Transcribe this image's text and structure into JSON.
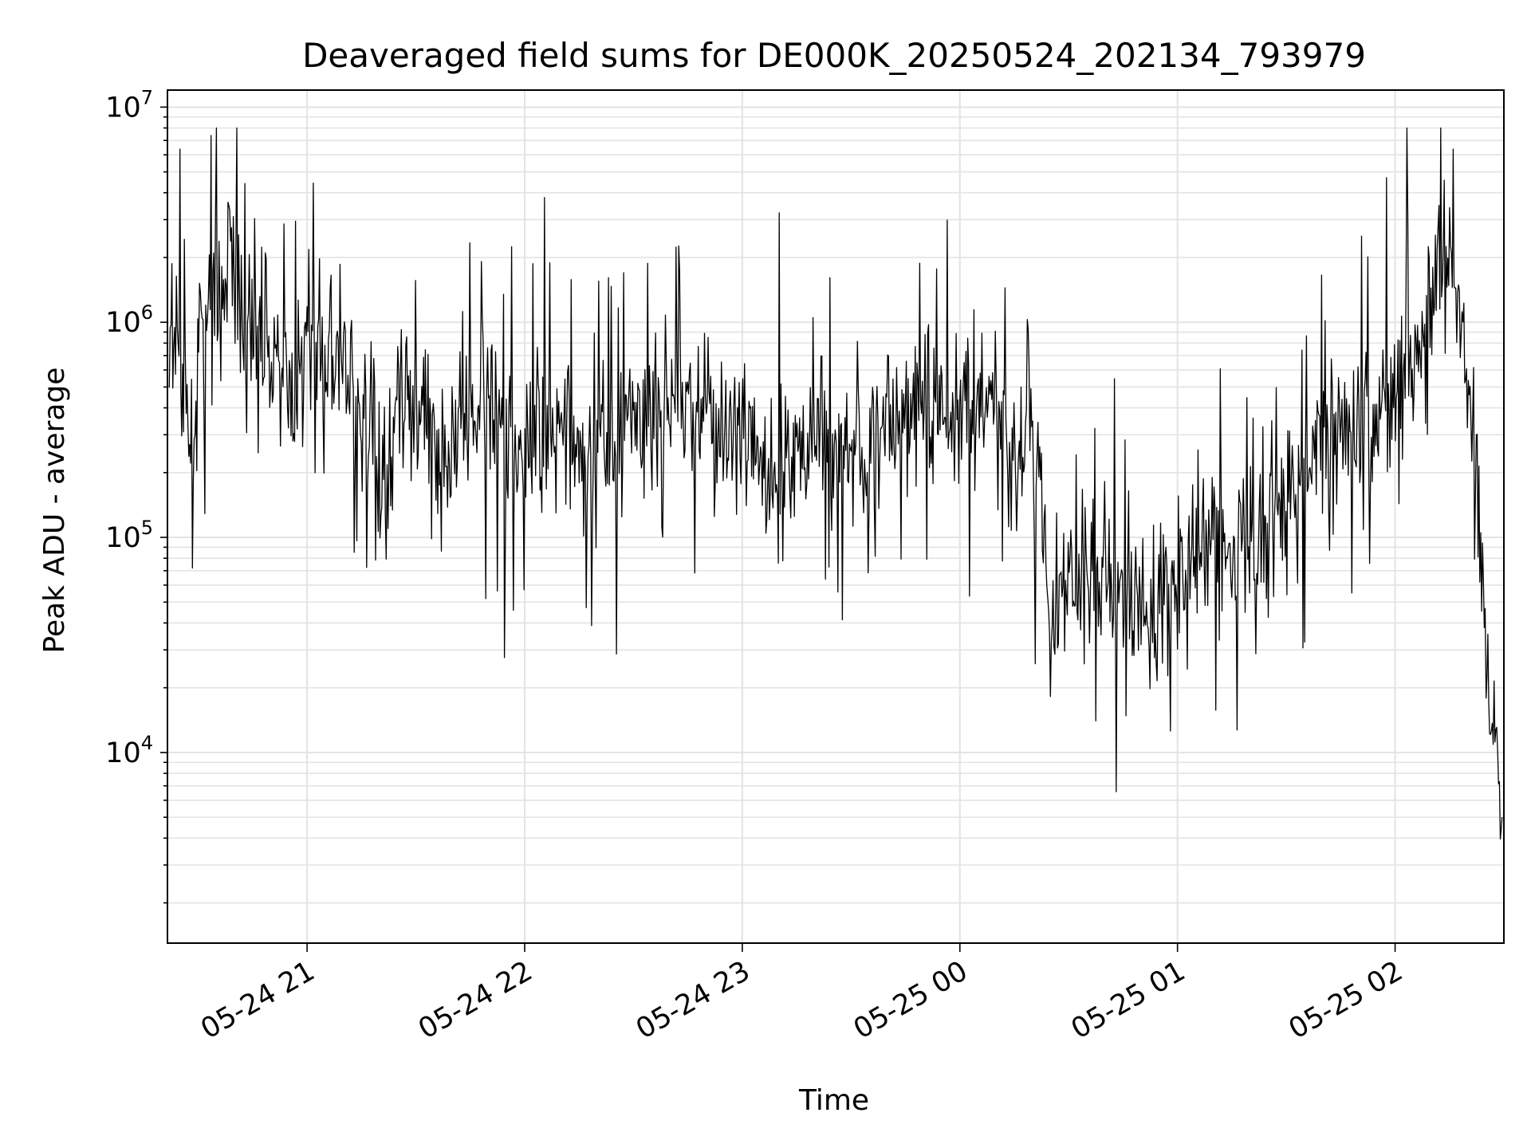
{
  "chart_data": {
    "type": "line",
    "title": "Deaveraged field sums for DE000K_20250524_202134_793979",
    "xlabel": "Time",
    "ylabel": "Peak ADU - average",
    "yscale": "log",
    "ylim": [
      1300,
      12000000
    ],
    "xlim": [
      "05-24 20:21:30",
      "05-25 02:30:00"
    ],
    "grid": true,
    "x_ticks": [
      "05-24 21",
      "05-24 22",
      "05-24 23",
      "05-25 00",
      "05-25 01",
      "05-25 02"
    ],
    "y_ticks": [
      {
        "base": "10",
        "exp": "4",
        "value": 10000
      },
      {
        "base": "10",
        "exp": "5",
        "value": 100000
      },
      {
        "base": "10",
        "exp": "6",
        "value": 1000000
      },
      {
        "base": "10",
        "exp": "7",
        "value": 10000000
      }
    ],
    "series": [
      {
        "color": "#000000",
        "points": [
          [
            "05-24 20:22:00",
            600000
          ],
          [
            "05-24 20:24:00",
            900000
          ],
          [
            "05-24 20:26:00",
            400000
          ],
          [
            "05-24 20:28:00",
            300000
          ],
          [
            "05-24 20:30:00",
            500000
          ],
          [
            "05-24 20:32:00",
            900000
          ],
          [
            "05-24 20:34:00",
            1200000
          ],
          [
            "05-24 20:36:00",
            800000
          ],
          [
            "05-24 20:38:00",
            2500000
          ],
          [
            "05-24 20:40:00",
            1400000
          ],
          [
            "05-24 20:42:00",
            1100000
          ],
          [
            "05-24 20:44:00",
            700000
          ],
          [
            "05-24 20:46:00",
            1300000
          ],
          [
            "05-24 20:48:00",
            900000
          ],
          [
            "05-24 20:50:00",
            600000
          ],
          [
            "05-24 20:52:00",
            700000
          ],
          [
            "05-24 20:54:00",
            500000
          ],
          [
            "05-24 20:56:00",
            400000
          ],
          [
            "05-24 20:58:00",
            600000
          ],
          [
            "05-24 21:00:00",
            800000
          ],
          [
            "05-24 21:03:00",
            700000
          ],
          [
            "05-24 21:06:00",
            900000
          ],
          [
            "05-24 21:09:00",
            600000
          ],
          [
            "05-24 21:12:00",
            400000
          ],
          [
            "05-24 21:15:00",
            250000
          ],
          [
            "05-24 21:18:00",
            300000
          ],
          [
            "05-24 21:21:00",
            150000
          ],
          [
            "05-24 21:24:00",
            400000
          ],
          [
            "05-24 21:27:00",
            500000
          ],
          [
            "05-24 21:30:00",
            350000
          ],
          [
            "05-24 21:35:00",
            300000
          ],
          [
            "05-24 21:40:00",
            250000
          ],
          [
            "05-24 21:45:00",
            350000
          ],
          [
            "05-24 21:50:00",
            400000
          ],
          [
            "05-24 21:55:00",
            300000
          ],
          [
            "05-24 22:00:00",
            280000
          ],
          [
            "05-24 22:05:00",
            250000
          ],
          [
            "05-24 22:10:00",
            350000
          ],
          [
            "05-24 22:15:00",
            250000
          ],
          [
            "05-24 22:20:00",
            220000
          ],
          [
            "05-24 22:25:00",
            260000
          ],
          [
            "05-24 22:30:00",
            300000
          ],
          [
            "05-24 22:35:00",
            350000
          ],
          [
            "05-24 22:40:00",
            400000
          ],
          [
            "05-24 22:45:00",
            450000
          ],
          [
            "05-24 22:50:00",
            420000
          ],
          [
            "05-24 22:55:00",
            320000
          ],
          [
            "05-24 23:00:00",
            250000
          ],
          [
            "05-24 23:05:00",
            220000
          ],
          [
            "05-24 23:10:00",
            200000
          ],
          [
            "05-24 23:15:00",
            260000
          ],
          [
            "05-24 23:20:00",
            300000
          ],
          [
            "05-24 23:25:00",
            280000
          ],
          [
            "05-24 23:30:00",
            270000
          ],
          [
            "05-24 23:35:00",
            260000
          ],
          [
            "05-24 23:40:00",
            320000
          ],
          [
            "05-24 23:45:00",
            400000
          ],
          [
            "05-24 23:50:00",
            450000
          ],
          [
            "05-24 23:55:00",
            380000
          ],
          [
            "05-25 00:00:00",
            380000
          ],
          [
            "05-25 00:05:00",
            420000
          ],
          [
            "05-25 00:10:00",
            350000
          ],
          [
            "05-25 00:15:00",
            280000
          ],
          [
            "05-25 00:20:00",
            260000
          ],
          [
            "05-25 00:22:00",
            220000
          ],
          [
            "05-25 00:25:00",
            45000
          ],
          [
            "05-25 00:30:00",
            80000
          ],
          [
            "05-25 00:35:00",
            70000
          ],
          [
            "05-25 00:40:00",
            60000
          ],
          [
            "05-25 00:45:00",
            50000
          ],
          [
            "05-25 00:50:00",
            45000
          ],
          [
            "05-25 00:55:00",
            55000
          ],
          [
            "05-25 01:00:00",
            70000
          ],
          [
            "05-25 01:05:00",
            90000
          ],
          [
            "05-25 01:10:00",
            100000
          ],
          [
            "05-25 01:15:00",
            80000
          ],
          [
            "05-25 01:20:00",
            90000
          ],
          [
            "05-25 01:25:00",
            110000
          ],
          [
            "05-25 01:30:00",
            150000
          ],
          [
            "05-25 01:35:00",
            200000
          ],
          [
            "05-25 01:40:00",
            260000
          ],
          [
            "05-25 01:45:00",
            320000
          ],
          [
            "05-25 01:50:00",
            350000
          ],
          [
            "05-25 01:55:00",
            380000
          ],
          [
            "05-25 02:00:00",
            550000
          ],
          [
            "05-25 02:05:00",
            900000
          ],
          [
            "05-25 02:10:00",
            1300000
          ],
          [
            "05-25 02:15:00",
            1800000
          ],
          [
            "05-25 02:18:00",
            1000000
          ],
          [
            "05-25 02:20:00",
            500000
          ],
          [
            "05-25 02:22:00",
            250000
          ],
          [
            "05-25 02:24:00",
            60000
          ],
          [
            "05-25 02:26:00",
            18000
          ],
          [
            "05-25 02:28:00",
            12000
          ],
          [
            "05-25 02:29:30",
            5000
          ]
        ]
      }
    ]
  }
}
